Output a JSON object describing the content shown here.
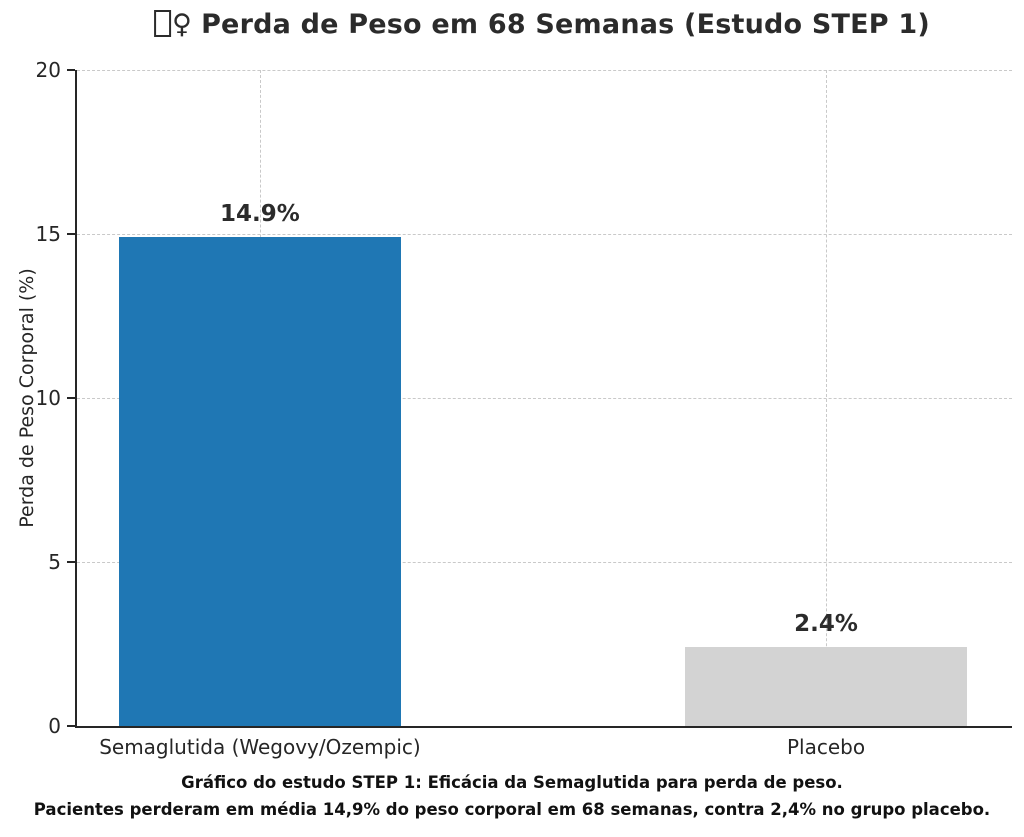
{
  "title": {
    "fallback_box": "□",
    "female_sign": "♀",
    "label": "Perda de Peso em 68 Semanas (Estudo STEP 1)"
  },
  "chart_data": {
    "type": "bar",
    "title": "□♀ Perda de Peso em 68 Semanas (Estudo STEP 1)",
    "categories": [
      "Semaglutida (Wegovy/Ozempic)",
      "Placebo"
    ],
    "values": [
      14.9,
      2.4
    ],
    "value_labels": [
      "14.9%",
      "2.4%"
    ],
    "bar_colors": [
      "#1f77b4",
      "#d3d3d3"
    ],
    "ylabel": "Perda de Peso Corporal (%)",
    "xlabel": "",
    "ylim": [
      0,
      20
    ],
    "yticks": [
      0,
      5,
      10,
      15,
      20
    ],
    "grid": {
      "style": "dashed",
      "axes": "both",
      "color": "#c9c9c9"
    },
    "legend": "none"
  },
  "caption": {
    "line1": "Gráfico do estudo STEP 1: Eficácia da Semaglutida para perda de peso.",
    "line2": "Pacientes perderam em média 14,9% do peso corporal em 68 semanas, contra 2,4% no grupo placebo."
  }
}
